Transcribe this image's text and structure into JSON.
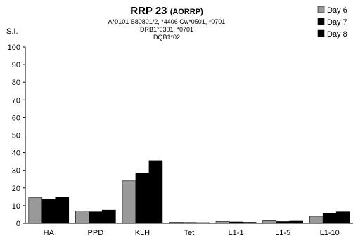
{
  "chart_data": {
    "type": "bar",
    "title": "RRP 23",
    "title_tag": "(AORRP)",
    "subtitle_lines": [
      "A*0101 B80801/2, *4406 Cw*0501, *0701",
      "DRB1*0301, *0701",
      "DQB1*02"
    ],
    "ylabel": "S.I.",
    "xlabel": "",
    "ylim": [
      0,
      100
    ],
    "yticks": [
      0,
      10,
      20,
      30,
      40,
      50,
      60,
      70,
      80,
      90,
      100
    ],
    "categories": [
      "HA",
      "PPD",
      "KLH",
      "Tet",
      "L1-1",
      "L1-5",
      "L1-10"
    ],
    "series": [
      {
        "name": "Day 6",
        "color": "#999999",
        "values": [
          14.5,
          7,
          24,
          0.6,
          1,
          1.5,
          4
        ]
      },
      {
        "name": "Day 7",
        "color": "#000000",
        "values": [
          13.5,
          6.5,
          28.5,
          0.5,
          0.8,
          1,
          5.5
        ]
      },
      {
        "name": "Day 8",
        "color": "#000000",
        "values": [
          15,
          7.5,
          35.5,
          0.4,
          0.6,
          1.2,
          6.5
        ]
      }
    ],
    "grid": false,
    "legend_position": "top-right"
  }
}
